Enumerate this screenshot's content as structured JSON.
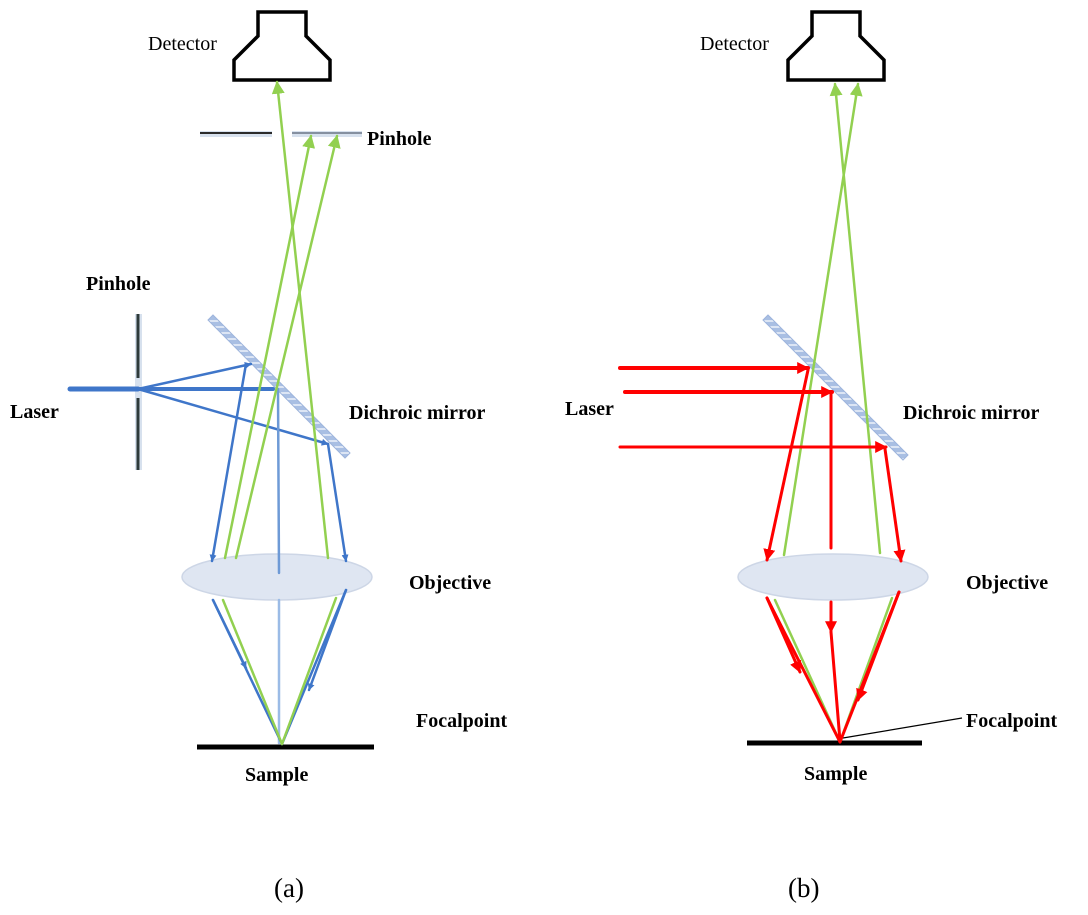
{
  "panel_a": {
    "detector_label": "Detector",
    "pinhole_top_label": "Pinhole",
    "pinhole_left_label": "Pinhole",
    "laser_label": "Laser",
    "mirror_label": "Dichroic mirror",
    "objective_label": "Objective",
    "focalpoint_label": "Focalpoint",
    "sample_label": "Sample",
    "caption": "(a)"
  },
  "panel_b": {
    "detector_label": "Detector",
    "laser_label": "Laser",
    "mirror_label": "Dichroic mirror",
    "objective_label": "Objective",
    "focalpoint_label": "Focalpoint",
    "sample_label": "Sample",
    "caption": "(b)"
  },
  "colors": {
    "excitation_a": "#3f76c9",
    "emission": "#92d050",
    "excitation_b": "#ff0000",
    "mirror": "#9db4dc",
    "lens_fill": "#dfe6f2",
    "outline": "#000000"
  }
}
